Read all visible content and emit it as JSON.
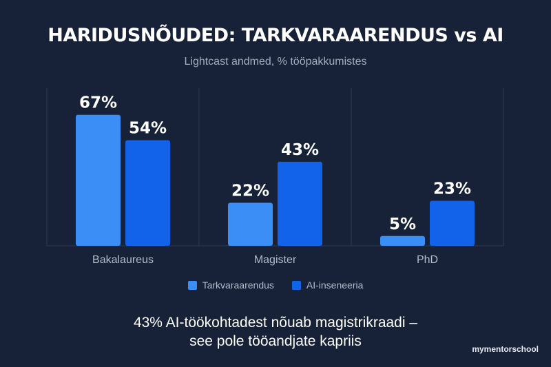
{
  "chart_data": {
    "type": "bar",
    "title": "HARIDUSNÕUDED: TARKVARAARENDUS vs AI",
    "subtitle": "Lightcast andmed, % tööpakkumistes",
    "categories": [
      "Bakalaureus",
      "Magister",
      "PhD"
    ],
    "series": [
      {
        "name": "Tarkvaraarendus",
        "values": [
          67,
          22,
          5
        ],
        "color": "#3b8ef5"
      },
      {
        "name": "AI-inseneeria",
        "values": [
          54,
          43,
          23
        ],
        "color": "#1363ea"
      }
    ],
    "value_suffix": "%",
    "ylim": [
      0,
      100
    ],
    "grid": false,
    "legend_position": "bottom"
  },
  "caption": {
    "line1": "43% AI-töökohtadest nõuab magistrikraadi –",
    "line2": "see pole tööandjate kapriis"
  },
  "brand": {
    "text": "mymentorschool"
  },
  "colors": {
    "background": "#172238",
    "divider": "#2d3a52"
  }
}
